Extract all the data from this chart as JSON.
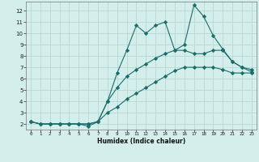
{
  "xlabel": "Humidex (Indice chaleur)",
  "bg_color": "#d4eeeb",
  "grid_color": "#b8d8d4",
  "line_color": "#1a6e6a",
  "xlim": [
    -0.5,
    23.5
  ],
  "ylim": [
    1.5,
    12.8
  ],
  "xticks": [
    0,
    1,
    2,
    3,
    4,
    5,
    6,
    7,
    8,
    9,
    10,
    11,
    12,
    13,
    14,
    15,
    16,
    17,
    18,
    19,
    20,
    21,
    22,
    23
  ],
  "yticks": [
    2,
    3,
    4,
    5,
    6,
    7,
    8,
    9,
    10,
    11,
    12
  ],
  "series1_x": [
    0,
    1,
    2,
    3,
    4,
    5,
    6,
    7,
    8,
    9,
    10,
    11,
    12,
    13,
    14,
    15,
    16,
    17,
    18,
    19,
    20,
    21,
    22,
    23
  ],
  "series1_y": [
    2.2,
    2.0,
    2.0,
    2.0,
    2.0,
    2.0,
    1.8,
    2.2,
    4.0,
    6.5,
    8.5,
    10.7,
    10.0,
    10.7,
    11.0,
    8.5,
    9.0,
    12.5,
    11.5,
    9.8,
    8.6,
    7.5,
    7.0,
    6.6
  ],
  "series2_x": [
    0,
    1,
    2,
    3,
    4,
    5,
    6,
    7,
    8,
    9,
    10,
    11,
    12,
    13,
    14,
    15,
    16,
    17,
    18,
    19,
    20,
    21,
    22,
    23
  ],
  "series2_y": [
    2.2,
    2.0,
    2.0,
    2.0,
    2.0,
    2.0,
    2.0,
    2.2,
    4.0,
    5.2,
    6.2,
    6.8,
    7.3,
    7.8,
    8.2,
    8.5,
    8.5,
    8.2,
    8.2,
    8.5,
    8.5,
    7.5,
    7.0,
    6.8
  ],
  "series3_x": [
    0,
    1,
    2,
    3,
    4,
    5,
    6,
    7,
    8,
    9,
    10,
    11,
    12,
    13,
    14,
    15,
    16,
    17,
    18,
    19,
    20,
    21,
    22,
    23
  ],
  "series3_y": [
    2.2,
    2.0,
    2.0,
    2.0,
    2.0,
    2.0,
    2.0,
    2.2,
    3.0,
    3.5,
    4.2,
    4.7,
    5.2,
    5.7,
    6.2,
    6.7,
    7.0,
    7.0,
    7.0,
    7.0,
    6.8,
    6.5,
    6.5,
    6.5
  ]
}
